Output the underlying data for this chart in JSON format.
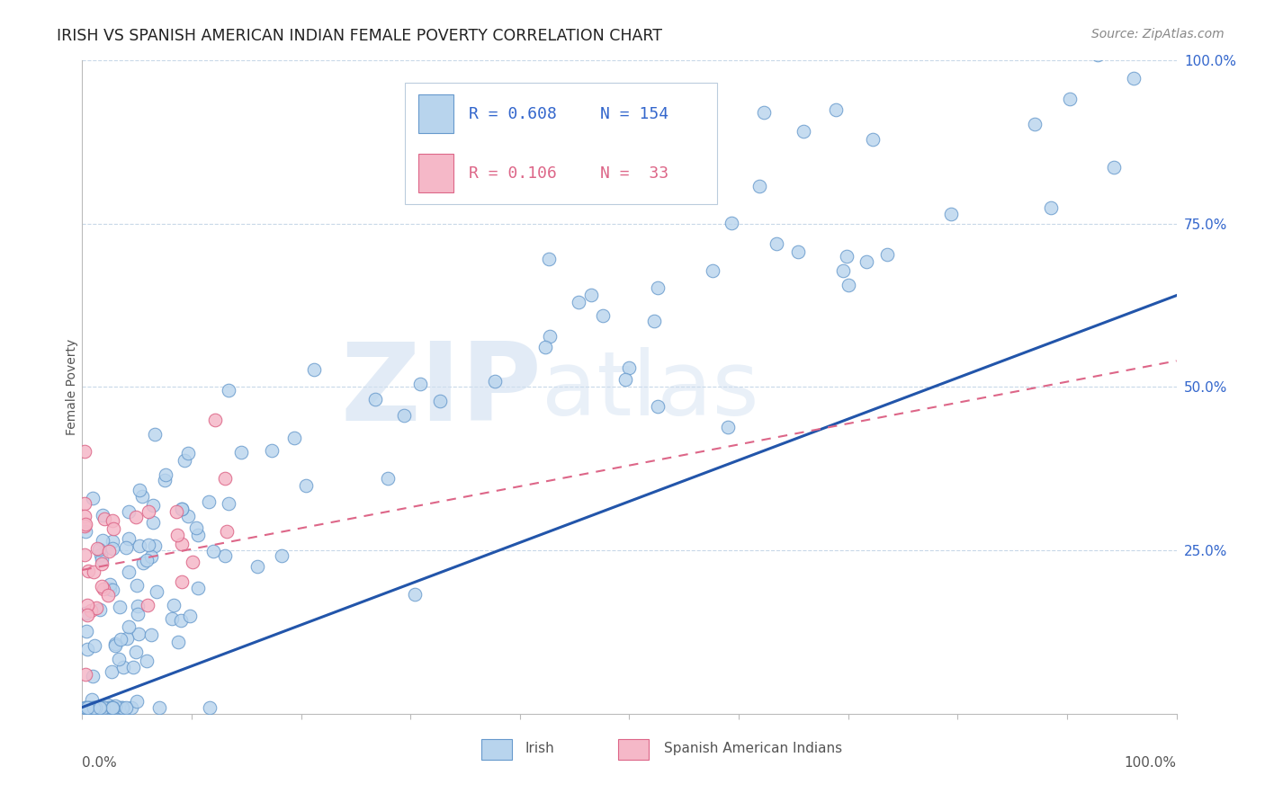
{
  "title": "IRISH VS SPANISH AMERICAN INDIAN FEMALE POVERTY CORRELATION CHART",
  "source": "Source: ZipAtlas.com",
  "ylabel": "Female Poverty",
  "right_yticklabels": [
    "",
    "25.0%",
    "50.0%",
    "75.0%",
    "100.0%"
  ],
  "legend": {
    "irish": {
      "R": "0.608",
      "N": "154"
    },
    "spanish": {
      "R": "0.106",
      "N": " 33"
    }
  },
  "irish_color": "#b8d4ed",
  "irish_edge": "#6699cc",
  "spanish_color": "#f5b8c8",
  "spanish_edge": "#dd6688",
  "trend_irish_color": "#2255aa",
  "trend_spanish_color": "#dd6688",
  "background_color": "#ffffff",
  "grid_color": "#c8d8e8",
  "watermark_zip": "ZIP",
  "watermark_atlas": "atlas",
  "legend_text_blue": "#3366cc",
  "legend_text_pink": "#dd6688",
  "title_color": "#222222",
  "source_color": "#888888",
  "axis_label_color": "#555555",
  "right_tick_color": "#3366cc"
}
